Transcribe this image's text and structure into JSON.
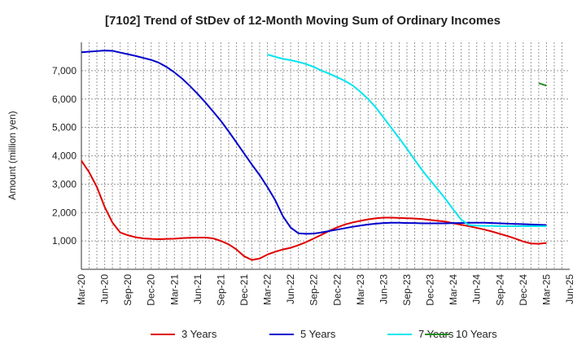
{
  "chart_data": {
    "type": "line",
    "title": "[7102]  Trend of StDev of 12-Month Moving Sum of Ordinary Incomes",
    "ylabel": "Amount (million yen)",
    "xlabel": "",
    "ylim": [
      0,
      8000
    ],
    "yticks": [
      1000,
      2000,
      3000,
      4000,
      5000,
      6000,
      7000
    ],
    "ytick_labels": [
      "1,000",
      "2,000",
      "3,000",
      "4,000",
      "5,000",
      "6,000",
      "7,000"
    ],
    "xtick_labels": [
      "Mar-20",
      "Jun-20",
      "Sep-20",
      "Dec-20",
      "Mar-21",
      "Jun-21",
      "Sep-21",
      "Dec-21",
      "Mar-22",
      "Jun-22",
      "Sep-22",
      "Dec-22",
      "Mar-23",
      "Jun-23",
      "Sep-23",
      "Dec-23",
      "Mar-24",
      "Jun-24",
      "Sep-24",
      "Dec-24",
      "Mar-25",
      "Jun-25"
    ],
    "grid": true,
    "legend_position": "bottom",
    "x": [
      "2020-03",
      "2020-04",
      "2020-05",
      "2020-06",
      "2020-07",
      "2020-08",
      "2020-09",
      "2020-10",
      "2020-11",
      "2020-12",
      "2021-01",
      "2021-02",
      "2021-03",
      "2021-04",
      "2021-05",
      "2021-06",
      "2021-07",
      "2021-08",
      "2021-09",
      "2021-10",
      "2021-11",
      "2021-12",
      "2022-01",
      "2022-02",
      "2022-03",
      "2022-04",
      "2022-05",
      "2022-06",
      "2022-07",
      "2022-08",
      "2022-09",
      "2022-10",
      "2022-11",
      "2022-12",
      "2023-01",
      "2023-02",
      "2023-03",
      "2023-04",
      "2023-05",
      "2023-06",
      "2023-07",
      "2023-08",
      "2023-09",
      "2023-10",
      "2023-11",
      "2023-12",
      "2024-01",
      "2024-02",
      "2024-03",
      "2024-04",
      "2024-05",
      "2024-06",
      "2024-07",
      "2024-08",
      "2024-09",
      "2024-10",
      "2024-11",
      "2024-12",
      "2025-01",
      "2025-02",
      "2025-03"
    ],
    "series": [
      {
        "name": "3 Years",
        "color": "#e00000",
        "values": [
          3830,
          3420,
          2900,
          2200,
          1650,
          1300,
          1200,
          1130,
          1090,
          1070,
          1060,
          1070,
          1080,
          1100,
          1110,
          1120,
          1120,
          1090,
          1000,
          880,
          700,
          460,
          330,
          380,
          520,
          620,
          700,
          760,
          850,
          960,
          1090,
          1220,
          1360,
          1480,
          1580,
          1650,
          1710,
          1760,
          1800,
          1820,
          1820,
          1810,
          1800,
          1790,
          1770,
          1740,
          1710,
          1680,
          1620,
          1570,
          1520,
          1460,
          1400,
          1330,
          1250,
          1170,
          1080,
          980,
          910,
          900,
          930
        ]
      },
      {
        "name": "5 Years",
        "color": "#0000cc",
        "values": [
          7650,
          7670,
          7690,
          7710,
          7700,
          7640,
          7580,
          7520,
          7450,
          7380,
          7280,
          7130,
          6940,
          6720,
          6460,
          6180,
          5880,
          5560,
          5230,
          4860,
          4470,
          4080,
          3690,
          3320,
          2900,
          2440,
          1870,
          1470,
          1270,
          1250,
          1260,
          1300,
          1350,
          1400,
          1450,
          1500,
          1540,
          1580,
          1610,
          1630,
          1640,
          1640,
          1630,
          1630,
          1620,
          1620,
          1620,
          1620,
          1630,
          1630,
          1640,
          1640,
          1640,
          1630,
          1620,
          1610,
          1600,
          1590,
          1580,
          1570,
          1560
        ]
      },
      {
        "name": "7 Years",
        "color": "#00e5ee",
        "values": [
          null,
          null,
          null,
          null,
          null,
          null,
          null,
          null,
          null,
          null,
          null,
          null,
          null,
          null,
          null,
          null,
          null,
          null,
          null,
          null,
          null,
          null,
          null,
          null,
          7570,
          7490,
          7420,
          7370,
          7310,
          7230,
          7130,
          7000,
          6890,
          6770,
          6640,
          6480,
          6250,
          6000,
          5700,
          5340,
          4980,
          4620,
          4250,
          3860,
          3480,
          3140,
          2810,
          2470,
          2100,
          1750,
          1560,
          1540,
          1530,
          1530,
          1520,
          1520,
          1520,
          1520,
          1520,
          1520,
          1520
        ]
      },
      {
        "name": "10 Years",
        "color": "#228b22",
        "values": [
          null,
          null,
          null,
          null,
          null,
          null,
          null,
          null,
          null,
          null,
          null,
          null,
          null,
          null,
          null,
          null,
          null,
          null,
          null,
          null,
          null,
          null,
          null,
          null,
          null,
          null,
          null,
          null,
          null,
          null,
          null,
          null,
          null,
          null,
          null,
          null,
          null,
          null,
          null,
          null,
          null,
          null,
          null,
          null,
          null,
          null,
          null,
          null,
          null,
          null,
          null,
          null,
          null,
          null,
          null,
          null,
          null,
          null,
          null,
          6560,
          6470
        ]
      }
    ]
  }
}
